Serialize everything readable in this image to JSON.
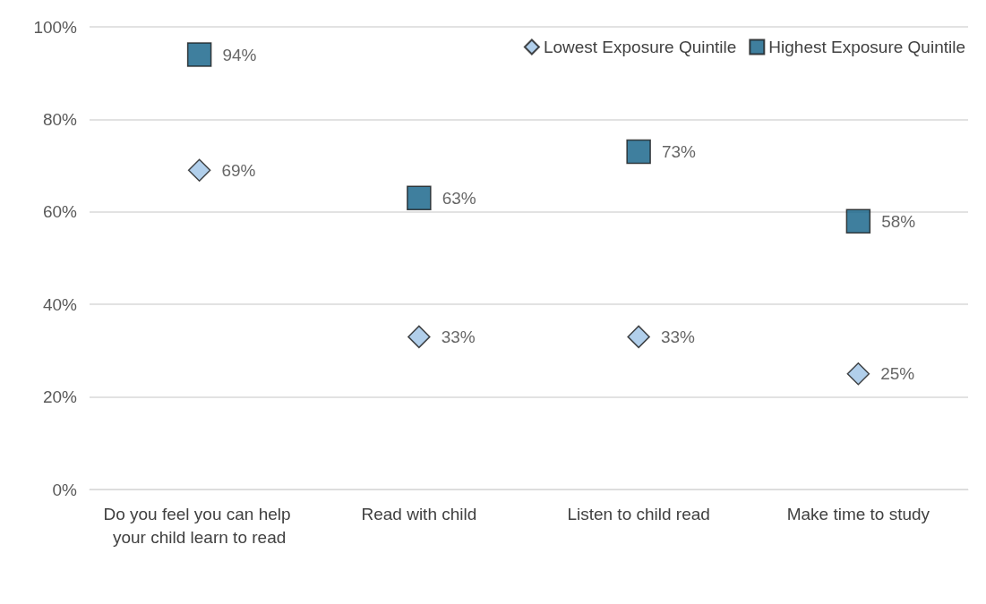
{
  "chart_data": {
    "type": "scatter",
    "categories": [
      "Do you feel you can help your child learn to read",
      "Read with child",
      "Listen to child read",
      "Make time to study"
    ],
    "series": [
      {
        "name": "Lowest Exposure Quintile",
        "color": "#9dc3e6",
        "marker": "diamond",
        "values": [
          69,
          33,
          33,
          25
        ],
        "value_labels": [
          "69%",
          "33%",
          "33%",
          "25%"
        ]
      },
      {
        "name": "Highest Exposure Quintile",
        "color": "#0f5f86",
        "marker": "square",
        "values": [
          94,
          63,
          73,
          58
        ],
        "value_labels": [
          "94%",
          "63%",
          "73%",
          "58%"
        ]
      }
    ],
    "ylim": [
      0,
      100
    ],
    "yticks": [
      {
        "value": 0,
        "label": "0%"
      },
      {
        "value": 20,
        "label": "20%"
      },
      {
        "value": 40,
        "label": "40%"
      },
      {
        "value": 60,
        "label": "60%"
      },
      {
        "value": 80,
        "label": "80%"
      },
      {
        "value": 100,
        "label": "100%"
      }
    ],
    "grid": "y",
    "legend": "top right"
  }
}
